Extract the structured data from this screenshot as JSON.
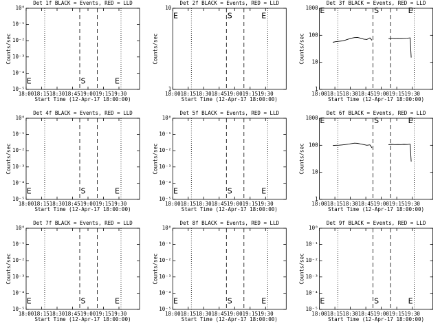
{
  "chart_data": [
    {
      "type": "line",
      "title": "Det 1f BLACK = Events, RED = LLD",
      "xlabel": "Start Time (12-Apr-17 18:00:00)",
      "ylabel": "Counts/sec",
      "log_y": true,
      "xlim": [
        0,
        110
      ],
      "xticks": [
        {
          "value": 0,
          "label": "18:00"
        },
        {
          "value": 15,
          "label": "18:15"
        },
        {
          "value": 30,
          "label": "18:30"
        },
        {
          "value": 45,
          "label": "18:45"
        },
        {
          "value": 60,
          "label": "19:00"
        },
        {
          "value": 75,
          "label": "19:15"
        },
        {
          "value": 90,
          "label": "19:30"
        }
      ],
      "ylim": [
        1e-05,
        1
      ],
      "yticks": [
        {
          "value": 1e-05,
          "label": "10⁻⁵"
        },
        {
          "value": 0.0001,
          "label": "10⁻⁴"
        },
        {
          "value": 0.001,
          "label": "10⁻³"
        },
        {
          "value": 0.01,
          "label": "10⁻²"
        },
        {
          "value": 0.1,
          "label": "10⁻¹"
        },
        {
          "value": 1,
          "label": "10⁰"
        }
      ],
      "vlines": [
        {
          "x": 18,
          "style": "dotted"
        },
        {
          "x": 52,
          "style": "dashed"
        },
        {
          "x": 69,
          "style": "dashed"
        },
        {
          "x": 92,
          "style": "dotted"
        }
      ],
      "annotations": [
        {
          "text": "E",
          "x": 0.5,
          "y": 3e-05
        },
        {
          "text": "S",
          "x": 53,
          "y": 3e-05
        },
        {
          "text": "E",
          "x": 86,
          "y": 3e-05
        }
      ]
    },
    {
      "type": "line",
      "title": "Det 2f BLACK = Events, RED = LLD",
      "xlabel": "Start Time (12-Apr-17 18:00:00)",
      "ylabel": "Counts/sec",
      "log_y": true,
      "xlim": [
        0,
        110
      ],
      "xticks": [
        {
          "value": 0,
          "label": "18:00"
        },
        {
          "value": 15,
          "label": "18:15"
        },
        {
          "value": 30,
          "label": "18:30"
        },
        {
          "value": 45,
          "label": "18:45"
        },
        {
          "value": 60,
          "label": "19:00"
        },
        {
          "value": 75,
          "label": "19:15"
        },
        {
          "value": 90,
          "label": "19:30"
        }
      ],
      "ylim": [
        1,
        10
      ],
      "yticks": [
        1,
        10
      ],
      "vlines": [
        {
          "x": 18,
          "style": "dotted"
        },
        {
          "x": 52,
          "style": "dashed"
        },
        {
          "x": 69,
          "style": "dashed"
        },
        {
          "x": 92,
          "style": "dotted"
        }
      ],
      "annotations": [
        {
          "text": "E",
          "x": 0.5,
          "y": 8
        },
        {
          "text": "S",
          "x": 53,
          "y": 8
        },
        {
          "text": "E",
          "x": 86,
          "y": 8
        }
      ]
    },
    {
      "type": "line",
      "title": "Det 3f BLACK = Events, RED = LLD",
      "xlabel": "Start Time (12-Apr-17 18:00:00)",
      "ylabel": "Counts/sec",
      "log_y": true,
      "xlim": [
        0,
        110
      ],
      "xticks": [
        {
          "value": 0,
          "label": "18:00"
        },
        {
          "value": 15,
          "label": "18:15"
        },
        {
          "value": 30,
          "label": "18:30"
        },
        {
          "value": 45,
          "label": "18:45"
        },
        {
          "value": 60,
          "label": "19:00"
        },
        {
          "value": 75,
          "label": "19:15"
        },
        {
          "value": 90,
          "label": "19:30"
        }
      ],
      "ylim": [
        1,
        1000
      ],
      "yticks": [
        1,
        10,
        100,
        1000
      ],
      "vlines": [
        {
          "x": 18,
          "style": "dotted"
        },
        {
          "x": 52,
          "style": "dashed"
        },
        {
          "x": 69,
          "style": "dashed"
        },
        {
          "x": 92,
          "style": "dotted"
        }
      ],
      "annotations": [
        {
          "text": "E",
          "x": 0.5,
          "y": 800
        },
        {
          "text": "S",
          "x": 53,
          "y": 800
        },
        {
          "text": "E",
          "x": 86,
          "y": 800
        }
      ],
      "series": [
        {
          "name": "Events",
          "color": "#000000",
          "x": [
            13,
            16,
            19,
            22,
            25,
            28,
            31,
            34,
            37,
            40,
            43,
            46,
            49,
            51,
            60,
            67,
            70,
            73,
            76,
            79,
            82,
            85,
            88,
            89
          ],
          "values": [
            55,
            58,
            60,
            62,
            66,
            72,
            78,
            82,
            83,
            78,
            72,
            70,
            80,
            65,
            null,
            75,
            78,
            76,
            77,
            76,
            77,
            78,
            80,
            15
          ]
        }
      ]
    },
    {
      "type": "line",
      "title": "Det 4f BLACK = Events, RED = LLD",
      "xlabel": "Start Time (12-Apr-17 18:00:00)",
      "ylabel": "Counts/sec",
      "log_y": true,
      "xlim": [
        0,
        110
      ],
      "xticks": [
        {
          "value": 0,
          "label": "18:00"
        },
        {
          "value": 15,
          "label": "18:15"
        },
        {
          "value": 30,
          "label": "18:30"
        },
        {
          "value": 45,
          "label": "18:45"
        },
        {
          "value": 60,
          "label": "19:00"
        },
        {
          "value": 75,
          "label": "19:15"
        },
        {
          "value": 90,
          "label": "19:30"
        }
      ],
      "ylim": [
        1e-05,
        1
      ],
      "yticks": [
        {
          "value": 1e-05,
          "label": "10⁻⁵"
        },
        {
          "value": 0.0001,
          "label": "10⁻⁴"
        },
        {
          "value": 0.001,
          "label": "10⁻³"
        },
        {
          "value": 0.01,
          "label": "10⁻²"
        },
        {
          "value": 0.1,
          "label": "10⁻¹"
        },
        {
          "value": 1,
          "label": "10⁰"
        }
      ],
      "vlines": [
        {
          "x": 18,
          "style": "dotted"
        },
        {
          "x": 52,
          "style": "dashed"
        },
        {
          "x": 69,
          "style": "dashed"
        },
        {
          "x": 92,
          "style": "dotted"
        }
      ],
      "annotations": [
        {
          "text": "E",
          "x": 0.5,
          "y": 3e-05
        },
        {
          "text": "S",
          "x": 53,
          "y": 3e-05
        },
        {
          "text": "E",
          "x": 86,
          "y": 3e-05
        }
      ]
    },
    {
      "type": "line",
      "title": "Det 5f BLACK = Events, RED = LLD",
      "xlabel": "Start Time (12-Apr-17 18:00:00)",
      "ylabel": "Counts/sec",
      "log_y": true,
      "xlim": [
        0,
        110
      ],
      "xticks": [
        {
          "value": 0,
          "label": "18:00"
        },
        {
          "value": 15,
          "label": "18:15"
        },
        {
          "value": 30,
          "label": "18:30"
        },
        {
          "value": 45,
          "label": "18:45"
        },
        {
          "value": 60,
          "label": "19:00"
        },
        {
          "value": 75,
          "label": "19:15"
        },
        {
          "value": 90,
          "label": "19:30"
        }
      ],
      "ylim": [
        1e-05,
        1
      ],
      "yticks": [
        {
          "value": 1e-05,
          "label": "10⁻⁵"
        },
        {
          "value": 0.0001,
          "label": "10⁻⁴"
        },
        {
          "value": 0.001,
          "label": "10⁻³"
        },
        {
          "value": 0.01,
          "label": "10⁻²"
        },
        {
          "value": 0.1,
          "label": "10⁻¹"
        },
        {
          "value": 1,
          "label": "10⁰"
        }
      ],
      "vlines": [
        {
          "x": 18,
          "style": "dotted"
        },
        {
          "x": 52,
          "style": "dashed"
        },
        {
          "x": 69,
          "style": "dashed"
        },
        {
          "x": 92,
          "style": "dotted"
        }
      ],
      "annotations": [
        {
          "text": "E",
          "x": 0.5,
          "y": 3e-05
        },
        {
          "text": "S",
          "x": 53,
          "y": 3e-05
        },
        {
          "text": "E",
          "x": 86,
          "y": 3e-05
        }
      ]
    },
    {
      "type": "line",
      "title": "Det 6f BLACK = Events, RED = LLD",
      "xlabel": "Start Time (12-Apr-17 18:00:00)",
      "ylabel": "Counts/sec",
      "log_y": true,
      "xlim": [
        0,
        110
      ],
      "xticks": [
        {
          "value": 0,
          "label": "18:00"
        },
        {
          "value": 15,
          "label": "18:15"
        },
        {
          "value": 30,
          "label": "18:30"
        },
        {
          "value": 45,
          "label": "18:45"
        },
        {
          "value": 60,
          "label": "19:00"
        },
        {
          "value": 75,
          "label": "19:15"
        },
        {
          "value": 90,
          "label": "19:30"
        }
      ],
      "ylim": [
        1,
        1000
      ],
      "yticks": [
        1,
        10,
        100,
        1000
      ],
      "vlines": [
        {
          "x": 18,
          "style": "dotted"
        },
        {
          "x": 52,
          "style": "dashed"
        },
        {
          "x": 69,
          "style": "dashed"
        },
        {
          "x": 92,
          "style": "dotted"
        }
      ],
      "annotations": [
        {
          "text": "E",
          "x": 0.5,
          "y": 800
        },
        {
          "text": "S",
          "x": 53,
          "y": 800
        },
        {
          "text": "E",
          "x": 86,
          "y": 800
        }
      ],
      "series": [
        {
          "name": "Events",
          "color": "#000000",
          "x": [
            13,
            16,
            19,
            22,
            25,
            28,
            31,
            34,
            37,
            40,
            43,
            46,
            49,
            51,
            60,
            67,
            70,
            73,
            76,
            79,
            82,
            85,
            88,
            89
          ],
          "values": [
            98,
            100,
            101,
            103,
            106,
            110,
            115,
            120,
            118,
            112,
            106,
            100,
            104,
            80,
            null,
            105,
            108,
            106,
            107,
            106,
            108,
            107,
            110,
            25
          ]
        }
      ]
    },
    {
      "type": "line",
      "title": "Det 7f BLACK = Events, RED = LLD",
      "xlabel": "Start Time (12-Apr-17 18:00:00)",
      "ylabel": "Counts/sec",
      "log_y": true,
      "xlim": [
        0,
        110
      ],
      "xticks": [
        {
          "value": 0,
          "label": "18:00"
        },
        {
          "value": 15,
          "label": "18:15"
        },
        {
          "value": 30,
          "label": "18:30"
        },
        {
          "value": 45,
          "label": "18:45"
        },
        {
          "value": 60,
          "label": "19:00"
        },
        {
          "value": 75,
          "label": "19:15"
        },
        {
          "value": 90,
          "label": "19:30"
        }
      ],
      "ylim": [
        1e-05,
        1
      ],
      "yticks": [
        {
          "value": 1e-05,
          "label": "10⁻⁵"
        },
        {
          "value": 0.0001,
          "label": "10⁻⁴"
        },
        {
          "value": 0.001,
          "label": "10⁻³"
        },
        {
          "value": 0.01,
          "label": "10⁻²"
        },
        {
          "value": 0.1,
          "label": "10⁻¹"
        },
        {
          "value": 1,
          "label": "10⁰"
        }
      ],
      "vlines": [
        {
          "x": 18,
          "style": "dotted"
        },
        {
          "x": 52,
          "style": "dashed"
        },
        {
          "x": 69,
          "style": "dashed"
        },
        {
          "x": 92,
          "style": "dotted"
        }
      ],
      "annotations": [
        {
          "text": "E",
          "x": 0.5,
          "y": 3e-05
        },
        {
          "text": "S",
          "x": 53,
          "y": 3e-05
        },
        {
          "text": "E",
          "x": 86,
          "y": 3e-05
        }
      ]
    },
    {
      "type": "line",
      "title": "Det 8f BLACK = Events, RED = LLD",
      "xlabel": "Start Time (12-Apr-17 18:00:00)",
      "ylabel": "Counts/sec",
      "log_y": true,
      "xlim": [
        0,
        110
      ],
      "xticks": [
        {
          "value": 0,
          "label": "18:00"
        },
        {
          "value": 15,
          "label": "18:15"
        },
        {
          "value": 30,
          "label": "18:30"
        },
        {
          "value": 45,
          "label": "18:45"
        },
        {
          "value": 60,
          "label": "19:00"
        },
        {
          "value": 75,
          "label": "19:15"
        },
        {
          "value": 90,
          "label": "19:30"
        }
      ],
      "ylim": [
        1e-05,
        1
      ],
      "yticks": [
        {
          "value": 1e-05,
          "label": "10⁻⁵"
        },
        {
          "value": 0.0001,
          "label": "10⁻⁴"
        },
        {
          "value": 0.001,
          "label": "10⁻³"
        },
        {
          "value": 0.01,
          "label": "10⁻²"
        },
        {
          "value": 0.1,
          "label": "10⁻¹"
        },
        {
          "value": 1,
          "label": "10⁰"
        }
      ],
      "vlines": [
        {
          "x": 18,
          "style": "dotted"
        },
        {
          "x": 52,
          "style": "dashed"
        },
        {
          "x": 69,
          "style": "dashed"
        },
        {
          "x": 92,
          "style": "dotted"
        }
      ],
      "annotations": [
        {
          "text": "E",
          "x": 0.5,
          "y": 3e-05
        },
        {
          "text": "S",
          "x": 53,
          "y": 3e-05
        },
        {
          "text": "E",
          "x": 86,
          "y": 3e-05
        }
      ]
    },
    {
      "type": "line",
      "title": "Det 9f BLACK = Events, RED = LLD",
      "xlabel": "Start Time (12-Apr-17 18:00:00)",
      "ylabel": "Counts/sec",
      "log_y": true,
      "xlim": [
        0,
        110
      ],
      "xticks": [
        {
          "value": 0,
          "label": "18:00"
        },
        {
          "value": 15,
          "label": "18:15"
        },
        {
          "value": 30,
          "label": "18:30"
        },
        {
          "value": 45,
          "label": "18:45"
        },
        {
          "value": 60,
          "label": "19:00"
        },
        {
          "value": 75,
          "label": "19:15"
        },
        {
          "value": 90,
          "label": "19:30"
        }
      ],
      "ylim": [
        1e-05,
        1
      ],
      "yticks": [
        {
          "value": 1e-05,
          "label": "10⁻⁵"
        },
        {
          "value": 0.0001,
          "label": "10⁻⁴"
        },
        {
          "value": 0.001,
          "label": "10⁻³"
        },
        {
          "value": 0.01,
          "label": "10⁻²"
        },
        {
          "value": 0.1,
          "label": "10⁻¹"
        },
        {
          "value": 1,
          "label": "10⁰"
        }
      ],
      "vlines": [
        {
          "x": 18,
          "style": "dotted"
        },
        {
          "x": 52,
          "style": "dashed"
        },
        {
          "x": 69,
          "style": "dashed"
        },
        {
          "x": 92,
          "style": "dotted"
        }
      ],
      "annotations": [
        {
          "text": "E",
          "x": 0.5,
          "y": 3e-05
        },
        {
          "text": "S",
          "x": 53,
          "y": 3e-05
        },
        {
          "text": "E",
          "x": 86,
          "y": 3e-05
        }
      ]
    }
  ]
}
